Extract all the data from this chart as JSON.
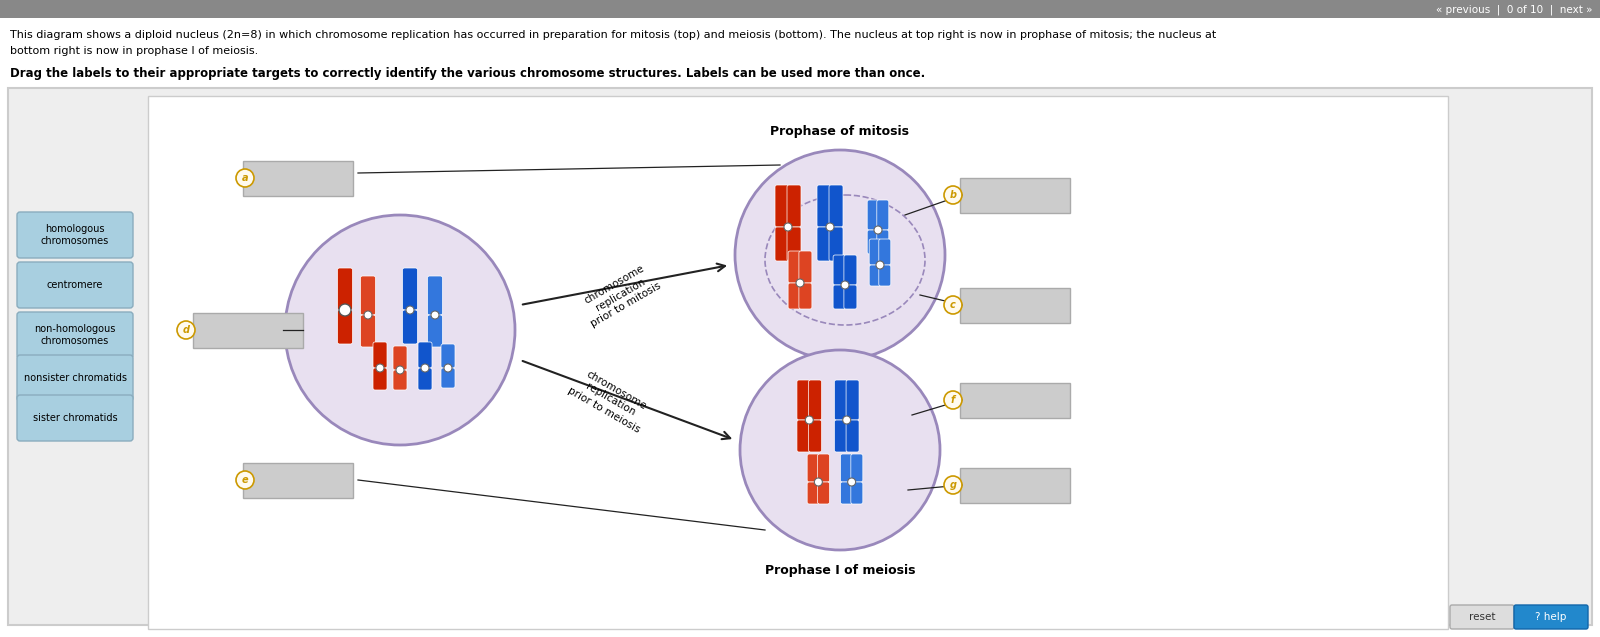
{
  "title1": "This diagram shows a diploid nucleus (2n=8) in which chromosome replication has occurred in preparation for mitosis (top) and meiosis (bottom). The nucleus at top right is now in prophase of mitosis; the nucleus at",
  "title2": "bottom right is now in prophase I of meiosis.",
  "bold_text": "Drag the labels to their appropriate targets to correctly identify the various chromosome structures. Labels can be used more than once.",
  "nav_text": "« previous  |  0 of 10  |  next »",
  "label_bg": "#a8cfe0",
  "label_edge": "#8aacbe",
  "labels": [
    "homologous\nchromosomes",
    "centromere",
    "non-homologous\nchromosomes",
    "nonsister chromatids",
    "sister chromatids"
  ],
  "prophase_mitosis_title": "Prophase of mitosis",
  "prophase_meiosis_title": "Prophase I of meiosis",
  "red1": "#cc2200",
  "red2": "#dd4422",
  "blue1": "#1155cc",
  "blue2": "#3377dd",
  "letter_color": "#cc9900",
  "letter_bg": "#fffaee",
  "arrow_color": "#222222",
  "nucleus_fill": "#e8e0f0",
  "nucleus_edge": "#9988bb",
  "footer_reset_bg": "#dddddd",
  "footer_help_bg": "#2288cc",
  "answer_box_color": "#cccccc",
  "answer_box_edge": "#aaaaaa",
  "outer_panel_bg": "#eeeeee",
  "outer_panel_edge": "#cccccc",
  "inner_panel_bg": "#ffffff",
  "white": "#ffffff",
  "black": "#000000"
}
